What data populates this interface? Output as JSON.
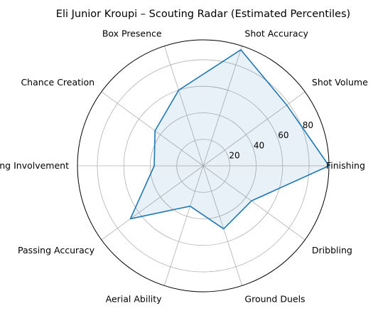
{
  "chart_data": {
    "type": "radar",
    "title": "Eli Junior Kroupi – Scouting Radar (Estimated Percentiles)",
    "categories": [
      "Finishing",
      "Shot Volume",
      "Shot Accuracy",
      "Box Presence",
      "Chance Creation",
      "Passing Involvement",
      "Passing Accuracy",
      "Aerial Ability",
      "Ground Duels",
      "Dribbling"
    ],
    "series": [
      {
        "values": [
          95,
          78,
          92,
          60,
          45,
          37,
          68,
          32,
          50,
          45
        ]
      }
    ],
    "rlim": [
      0,
      95
    ],
    "rticks": [
      20,
      40,
      60,
      80
    ],
    "grid": true,
    "colors": {
      "line": "#1f77b4",
      "fill": "#1f77b4"
    }
  }
}
